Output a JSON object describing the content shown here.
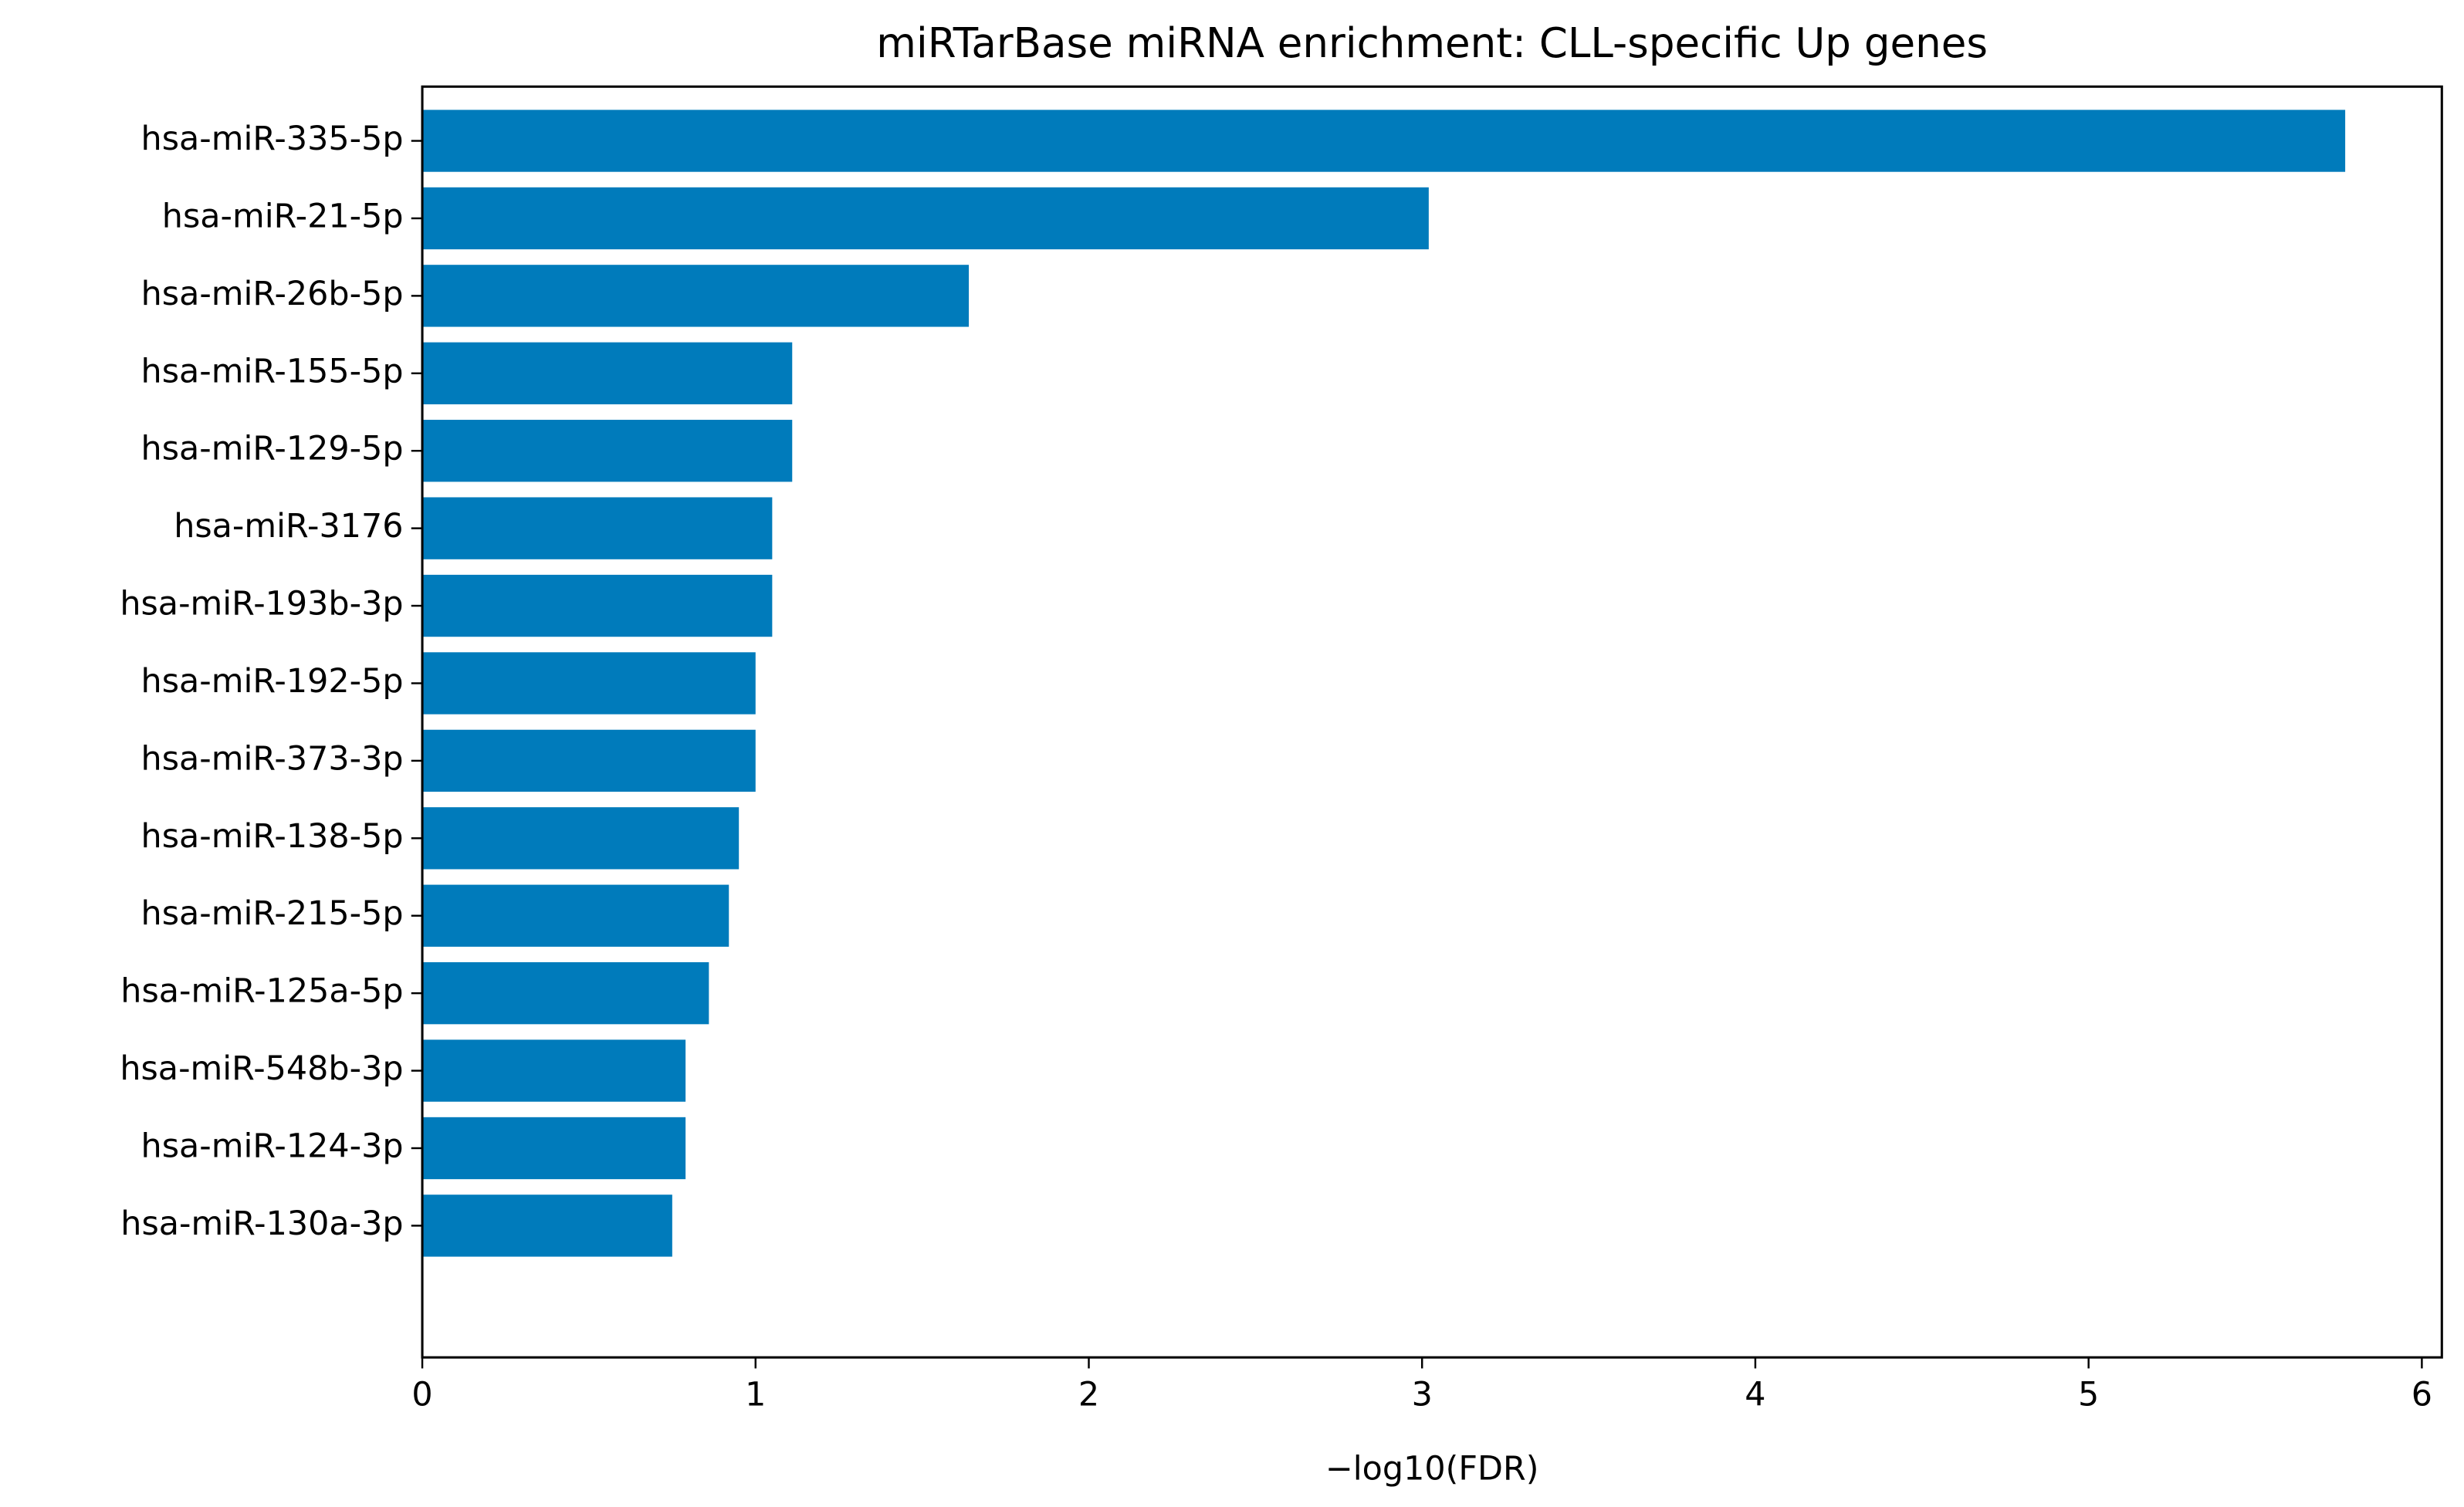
{
  "chart_data": {
    "type": "barh",
    "title": "miRTarBase miRNA enrichment: CLL-specific Up genes",
    "x_label": "−log10(FDR)",
    "categories": [
      "hsa-miR-335-5p",
      "hsa-miR-21-5p",
      "hsa-miR-26b-5p",
      "hsa-miR-155-5p",
      "hsa-miR-129-5p",
      "hsa-miR-3176",
      "hsa-miR-193b-3p",
      "hsa-miR-192-5p",
      "hsa-miR-373-3p",
      "hsa-miR-138-5p",
      "hsa-miR-215-5p",
      "hsa-miR-125a-5p",
      "hsa-miR-548b-3p",
      "hsa-miR-124-3p",
      "hsa-miR-130a-3p"
    ],
    "values": [
      5.77,
      3.02,
      1.64,
      1.11,
      1.11,
      1.05,
      1.05,
      1.0,
      1.0,
      0.95,
      0.92,
      0.86,
      0.79,
      0.79,
      0.75
    ],
    "color": "#007bbb",
    "xlim": [
      0,
      6.06
    ],
    "xticks": [
      0,
      1,
      2,
      3,
      4,
      5,
      6
    ],
    "grid": false
  }
}
